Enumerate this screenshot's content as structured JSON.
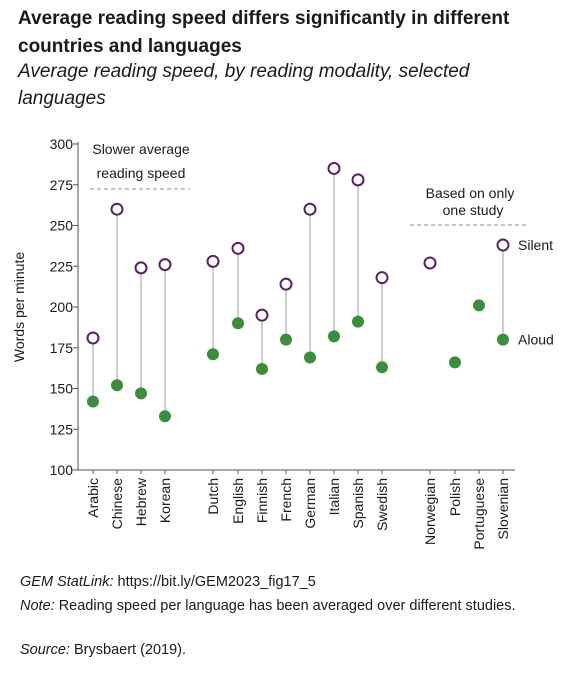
{
  "title": "Average reading speed differs significantly in different countries and languages",
  "subtitle": "Average reading speed, by reading modality, selected languages",
  "chart_data": {
    "type": "scatter",
    "ylabel": "Words per minute",
    "ylim": [
      100,
      300
    ],
    "yticks": [
      100,
      125,
      150,
      175,
      200,
      225,
      250,
      275,
      300
    ],
    "categories": [
      "Arabic",
      "Chinese",
      "Hebrew",
      "Korean",
      "Dutch",
      "English",
      "Finnish",
      "French",
      "German",
      "Italian",
      "Spanish",
      "Swedish",
      "Norwegian",
      "Polish",
      "Portuguese",
      "Slovenian"
    ],
    "series": [
      {
        "name": "Silent",
        "color": "#5b1f66",
        "values": [
          181,
          260,
          224,
          226,
          228,
          236,
          195,
          214,
          260,
          285,
          278,
          218,
          227,
          null,
          null,
          238
        ]
      },
      {
        "name": "Aloud",
        "color": "#3d8c40",
        "values": [
          142,
          152,
          147,
          133,
          171,
          190,
          162,
          180,
          169,
          182,
          191,
          163,
          null,
          166,
          201,
          180
        ]
      }
    ],
    "annotations": [
      {
        "text_lines": [
          "Slower average",
          "reading speed"
        ],
        "applies_to": [
          "Arabic",
          "Chinese",
          "Hebrew",
          "Korean"
        ]
      },
      {
        "text_lines": [
          "Based on only",
          "one study"
        ],
        "applies_to": [
          "Norwegian",
          "Polish",
          "Portuguese",
          "Slovenian"
        ]
      }
    ]
  },
  "footer": {
    "statlink_label": "GEM StatLink:",
    "statlink_url": "https://bit.ly/GEM2023_fig17_5",
    "note_label": "Note:",
    "note_text": "Reading speed per language has been averaged over different studies.",
    "source_label": "Source:",
    "source_text": "Brysbaert (2019)."
  }
}
